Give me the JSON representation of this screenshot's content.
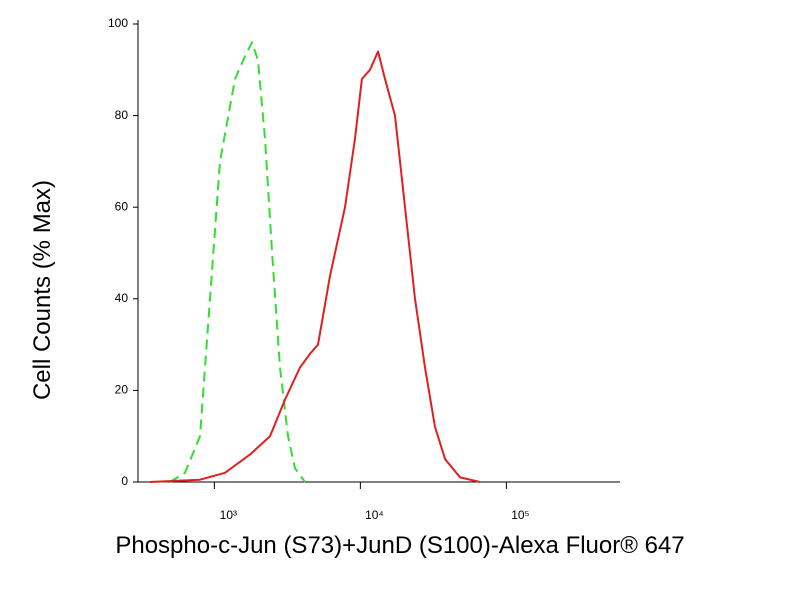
{
  "chart_data": {
    "type": "line",
    "x_label": "Phospho-c-Jun (S73)+JunD (S100)-Alexa Fluor® 647",
    "y_label": "Cell Counts (% Max)",
    "xscale": "log",
    "xlim": [
      300,
      600000
    ],
    "xticks": [
      {
        "value": 1000,
        "label": "10³"
      },
      {
        "value": 10000,
        "label": "10⁴"
      },
      {
        "value": 100000,
        "label": "10⁵"
      }
    ],
    "ylim": [
      0,
      100
    ],
    "yticks": [
      0,
      20,
      40,
      60,
      80,
      100
    ],
    "series": [
      {
        "color": "#33dd33",
        "dashed": true,
        "x": [
          497,
          630,
          798,
          934,
          1093,
          1385,
          1622,
          1811,
          1991,
          2224,
          2485,
          2818,
          3194,
          3567,
          4178
        ],
        "values": [
          0,
          2,
          10,
          40,
          70,
          88,
          93,
          96,
          92,
          75,
          50,
          25,
          10,
          3,
          0
        ]
      },
      {
        "color": "#e02020",
        "dashed": false,
        "x": [
          362,
          798,
          1183,
          1754,
          2406,
          3046,
          3863,
          4519,
          5127,
          6194,
          7848,
          9183,
          10250,
          11640,
          13210,
          14750,
          17260,
          20230,
          23660,
          27730,
          32430,
          38020,
          48190,
          65920
        ],
        "values": [
          0,
          0.5,
          2,
          6,
          10,
          18,
          25,
          28,
          30,
          45,
          60,
          75,
          88,
          90,
          94,
          88,
          80,
          60,
          40,
          25,
          12,
          5,
          1,
          0
        ]
      }
    ]
  }
}
